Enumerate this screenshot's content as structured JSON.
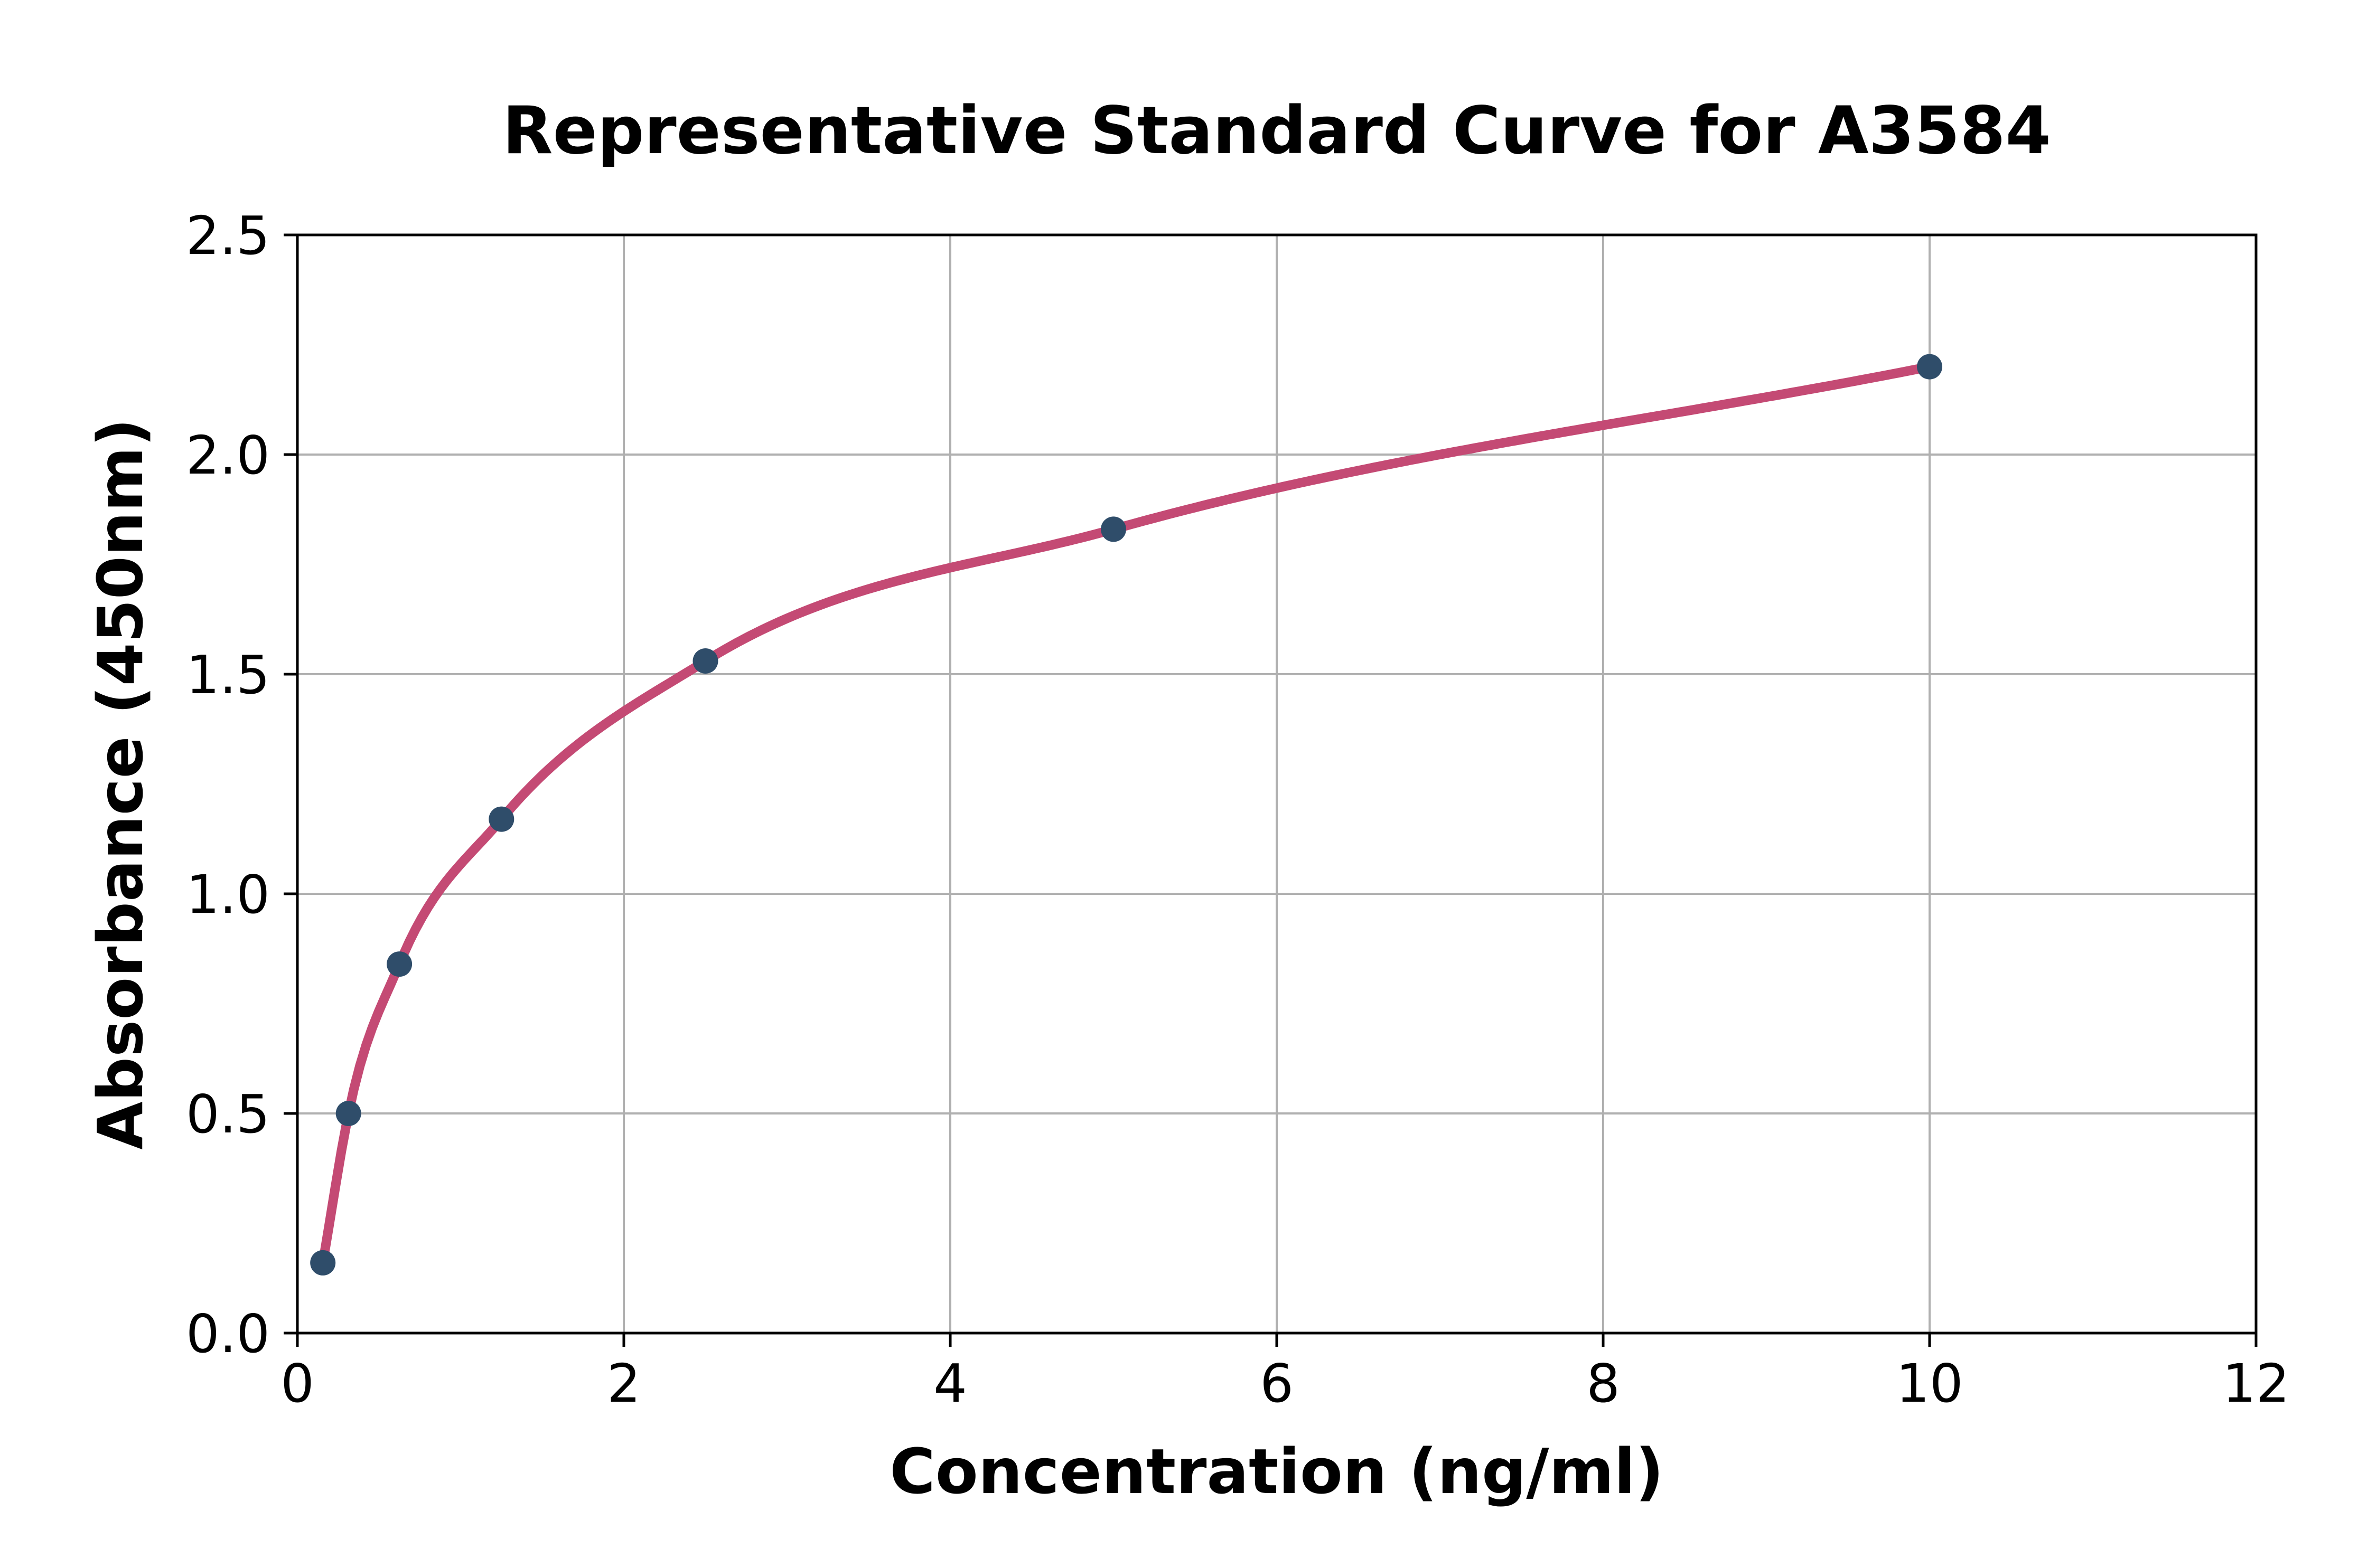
{
  "figure": {
    "background": "#ffffff"
  },
  "chart_data": {
    "type": "scatter",
    "title": "Representative Standard Curve for A3584",
    "xlabel": "Concentration (ng/ml)",
    "ylabel": "Absorbance (450nm)",
    "xlim": [
      0,
      12
    ],
    "ylim": [
      0,
      2.5
    ],
    "xticks": [
      0,
      2,
      4,
      6,
      8,
      10,
      12
    ],
    "xtick_labels": [
      "0",
      "2",
      "4",
      "6",
      "8",
      "10",
      "12"
    ],
    "yticks": [
      0.0,
      0.5,
      1.0,
      1.5,
      2.0,
      2.5
    ],
    "ytick_labels": [
      "0.0",
      "0.5",
      "1.0",
      "1.5",
      "2.0",
      "2.5"
    ],
    "grid": true,
    "grid_color": "#b0b0b0",
    "legend_position": "none",
    "series": [
      {
        "name": "standards",
        "marker": "circle",
        "marker_color": "#2f4d6a",
        "points": [
          {
            "x": 0.156,
            "y": 0.16
          },
          {
            "x": 0.313,
            "y": 0.5
          },
          {
            "x": 0.625,
            "y": 0.84
          },
          {
            "x": 1.25,
            "y": 1.17
          },
          {
            "x": 2.5,
            "y": 1.53
          },
          {
            "x": 5.0,
            "y": 1.83
          },
          {
            "x": 10.0,
            "y": 2.2
          }
        ]
      }
    ],
    "fit_curve": {
      "name": "fitted standard curve",
      "color": "#c44a74",
      "x_start": 0.156,
      "x_end": 10.0
    },
    "axis_color": "#000000",
    "text_color": "#000000"
  }
}
